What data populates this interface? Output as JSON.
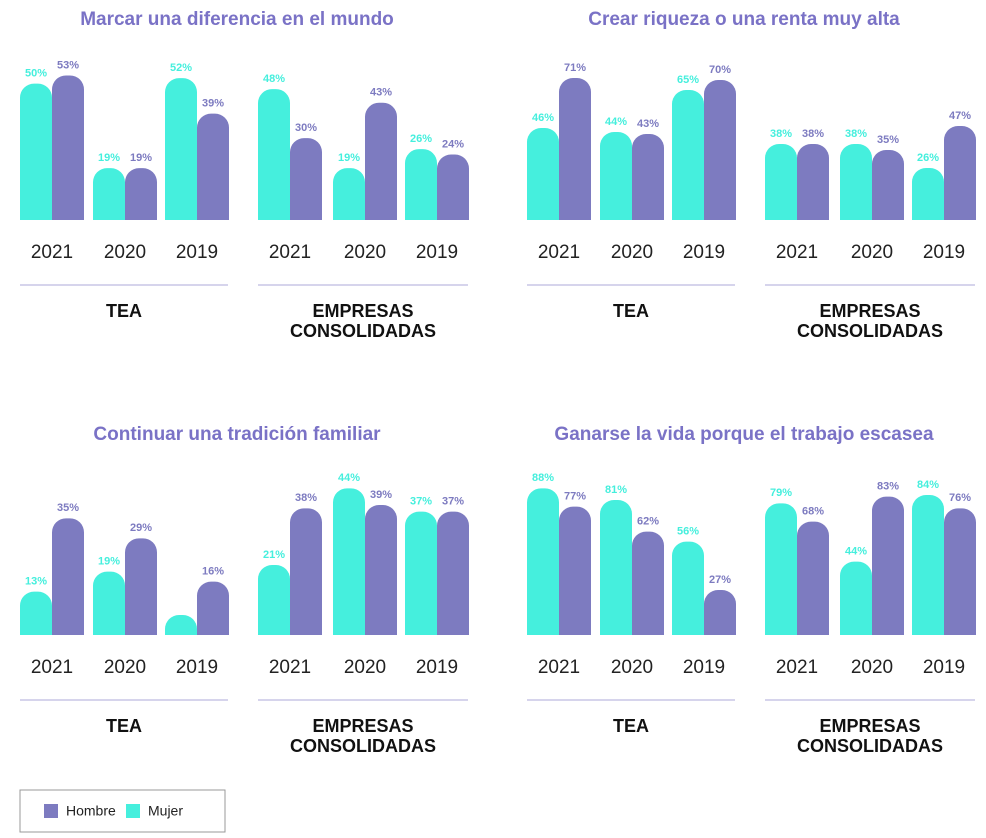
{
  "chart_data": [
    {
      "type": "bar",
      "title": "Marcar una diferencia en el mundo",
      "ylim": [
        0,
        55
      ],
      "groups": [
        {
          "label": "TEA",
          "categories": [
            "2021",
            "2020",
            "2019"
          ],
          "series": [
            {
              "values": [
                53,
                19,
                39
              ],
              "value_labels": [
                "53%",
                "19%",
                "39%"
              ]
            },
            {
              "values": [
                50,
                19,
                52
              ],
              "value_labels": [
                "50%",
                "19%",
                "52%"
              ]
            }
          ]
        },
        {
          "label": "EMPRESAS CONSOLIDADAS",
          "categories": [
            "2021",
            "2020",
            "2019"
          ],
          "series": [
            {
              "values": [
                30,
                43,
                24
              ],
              "value_labels": [
                "30%",
                "43%",
                "24%"
              ]
            },
            {
              "values": [
                48,
                19,
                26
              ],
              "value_labels": [
                "48%",
                "19%",
                "26%"
              ]
            }
          ]
        }
      ]
    },
    {
      "type": "bar",
      "title": "Crear riqueza o una renta muy alta",
      "ylim": [
        0,
        75
      ],
      "groups": [
        {
          "label": "TEA",
          "categories": [
            "2021",
            "2020",
            "2019"
          ],
          "series": [
            {
              "values": [
                71,
                43,
                70
              ],
              "value_labels": [
                "71%",
                "43%",
                "70%"
              ]
            },
            {
              "values": [
                46,
                44,
                65
              ],
              "value_labels": [
                "46%",
                "44%",
                "65%"
              ]
            }
          ]
        },
        {
          "label": "EMPRESAS CONSOLIDADAS",
          "categories": [
            "2021",
            "2020",
            "2019"
          ],
          "series": [
            {
              "values": [
                38,
                35,
                47
              ],
              "value_labels": [
                "38%",
                "35%",
                "47%"
              ]
            },
            {
              "values": [
                38,
                38,
                26
              ],
              "value_labels": [
                "38%",
                "38%",
                "26%"
              ]
            }
          ]
        }
      ]
    },
    {
      "type": "bar",
      "title": "Continuar una tradición familiar",
      "ylim": [
        0,
        45
      ],
      "groups": [
        {
          "label": "TEA",
          "categories": [
            "2021",
            "2020",
            "2019"
          ],
          "series": [
            {
              "values": [
                35,
                29,
                16
              ],
              "value_labels": [
                "35%",
                "29%",
                "16%"
              ]
            },
            {
              "values": [
                13,
                19,
                6
              ],
              "value_labels": [
                "13%",
                "19%",
                null
              ]
            }
          ]
        },
        {
          "label": "EMPRESAS CONSOLIDADAS",
          "categories": [
            "2021",
            "2020",
            "2019"
          ],
          "series": [
            {
              "values": [
                38,
                39,
                37
              ],
              "value_labels": [
                "38%",
                "39%",
                "37%"
              ]
            },
            {
              "values": [
                21,
                44,
                37
              ],
              "value_labels": [
                "21%",
                "44%",
                "37%"
              ]
            }
          ]
        }
      ]
    },
    {
      "type": "bar",
      "title": "Ganarse la vida porque el trabajo escasea",
      "ylim": [
        0,
        90
      ],
      "groups": [
        {
          "label": "TEA",
          "categories": [
            "2021",
            "2020",
            "2019"
          ],
          "series": [
            {
              "values": [
                77,
                62,
                27
              ],
              "value_labels": [
                "77%",
                "62%",
                "27%"
              ]
            },
            {
              "values": [
                88,
                81,
                56
              ],
              "value_labels": [
                "88%",
                "81%",
                "56%"
              ]
            }
          ]
        },
        {
          "label": "EMPRESAS CONSOLIDADAS",
          "categories": [
            "2021",
            "2020",
            "2019"
          ],
          "series": [
            {
              "values": [
                68,
                83,
                76
              ],
              "value_labels": [
                "68%",
                "83%",
                "76%"
              ]
            },
            {
              "values": [
                79,
                44,
                84
              ],
              "value_labels": [
                "79%",
                "44%",
                "84%"
              ]
            }
          ]
        }
      ]
    }
  ],
  "legend": [
    {
      "name": "Hombre",
      "color": "#7d7bc0"
    },
    {
      "name": "Mujer",
      "color": "#45efdd"
    }
  ]
}
